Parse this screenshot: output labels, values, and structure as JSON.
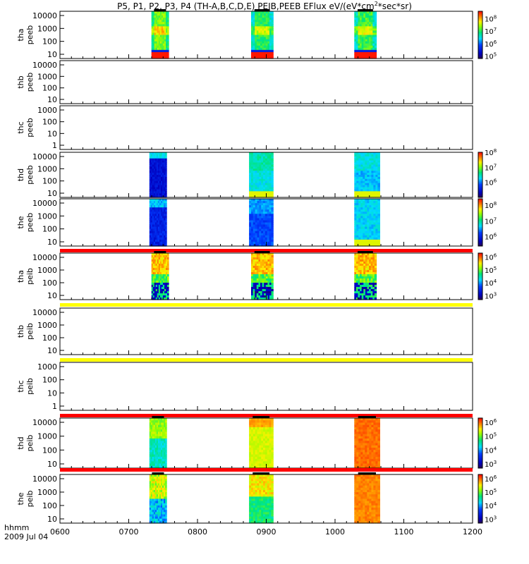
{
  "title": {
    "main": "P5, P1, P2, P3, P4 (TH-A,B,C,D,E) PEIB,PEEB EFlux eV/(eV*cm",
    "sup": "2",
    "tail": "*sec*sr)"
  },
  "footer": {
    "axis_label": "hhmm",
    "date": "2009 Jul 04"
  },
  "chart_data": {
    "type": "heatmap",
    "x_axis": {
      "range": [
        "0600",
        "1200"
      ],
      "tick_labels": [
        "0600",
        "0700",
        "0800",
        "0900",
        "1000",
        "1100",
        "1200"
      ],
      "tick_values_hours": [
        6,
        7,
        8,
        9,
        10,
        11,
        12
      ]
    },
    "colormap": "rainbow (blue-cyan-green-yellow-red)",
    "panels": [
      {
        "probe": "tha",
        "instrument": "peeb",
        "yscale": "log",
        "y_tick_labels": [
          "10",
          "100",
          "1000",
          "10000"
        ],
        "colorbar": {
          "ticks": [
            "10^5",
            "10^6",
            "10^7",
            "10^8"
          ],
          "exp": [
            5,
            6,
            7,
            8
          ],
          "min_exp": 4.8,
          "max_exp": 8.6
        },
        "data_intervals_hours": [
          [
            7.33,
            7.58
          ],
          [
            8.78,
            9.1
          ],
          [
            10.28,
            10.6
          ]
        ],
        "pattern": "tha_e",
        "top_bar": null
      },
      {
        "probe": "thb",
        "instrument": "peeb",
        "yscale": "log",
        "y_tick_labels": [
          "10",
          "100",
          "1000",
          "10000"
        ],
        "colorbar": null,
        "data_intervals_hours": [],
        "pattern": "none",
        "top_bar": null
      },
      {
        "probe": "thc",
        "instrument": "peeb",
        "yscale": "log",
        "y_tick_labels": [
          "1",
          "10",
          "100",
          "1000"
        ],
        "colorbar": null,
        "data_intervals_hours": [],
        "pattern": "none",
        "top_bar": null
      },
      {
        "probe": "thd",
        "instrument": "peeb",
        "yscale": "log",
        "y_tick_labels": [
          "10",
          "100",
          "1000",
          "10000"
        ],
        "colorbar": {
          "ticks": [
            "10^6",
            "10^7",
            "10^8"
          ],
          "exp": [
            6,
            7,
            8
          ],
          "min_exp": 5.0,
          "max_exp": 8.0
        },
        "data_intervals_hours": [
          [
            7.3,
            7.55
          ],
          [
            8.75,
            9.1
          ],
          [
            10.28,
            10.65
          ]
        ],
        "pattern": "thd_e",
        "top_bar": null
      },
      {
        "probe": "the",
        "instrument": "peeb",
        "yscale": "log",
        "y_tick_labels": [
          "10",
          "100",
          "1000",
          "10000"
        ],
        "colorbar": {
          "ticks": [
            "10^6",
            "10^7",
            "10^8"
          ],
          "exp": [
            6,
            7,
            8
          ],
          "min_exp": 5.4,
          "max_exp": 8.4
        },
        "data_intervals_hours": [
          [
            7.3,
            7.55
          ],
          [
            8.75,
            9.1
          ],
          [
            10.28,
            10.65
          ]
        ],
        "pattern": "the_e",
        "top_bar": null
      },
      {
        "probe": "tha",
        "instrument": "peib",
        "yscale": "log",
        "y_tick_labels": [
          "10",
          "100",
          "1000",
          "10000"
        ],
        "colorbar": {
          "ticks": [
            "10^3",
            "10^4",
            "10^5",
            "10^6"
          ],
          "exp": [
            3,
            4,
            5,
            6
          ],
          "min_exp": 2.7,
          "max_exp": 6.3
        },
        "data_intervals_hours": [
          [
            7.33,
            7.58
          ],
          [
            8.78,
            9.1
          ],
          [
            10.28,
            10.6
          ]
        ],
        "pattern": "ion_a",
        "top_bar": "#ff0000"
      },
      {
        "probe": "thb",
        "instrument": "peib",
        "yscale": "log",
        "y_tick_labels": [
          "10",
          "100",
          "1000",
          "10000"
        ],
        "colorbar": null,
        "data_intervals_hours": [],
        "pattern": "none",
        "top_bar": "#ffff00"
      },
      {
        "probe": "thc",
        "instrument": "peib",
        "yscale": "log",
        "y_tick_labels": [
          "1",
          "10",
          "100",
          "1000"
        ],
        "colorbar": null,
        "data_intervals_hours": [],
        "pattern": "none",
        "top_bar": "#ffff00"
      },
      {
        "probe": "thd",
        "instrument": "peib",
        "yscale": "log",
        "y_tick_labels": [
          "10",
          "100",
          "1000",
          "10000"
        ],
        "colorbar": {
          "ticks": [
            "10^3",
            "10^4",
            "10^5",
            "10^6"
          ],
          "exp": [
            3,
            4,
            5,
            6
          ],
          "min_exp": 2.7,
          "max_exp": 6.3
        },
        "data_intervals_hours": [
          [
            7.3,
            7.55
          ],
          [
            8.75,
            9.1
          ],
          [
            10.28,
            10.65
          ]
        ],
        "pattern": "ion_d",
        "top_bar": "#ff0000"
      },
      {
        "probe": "the",
        "instrument": "peib",
        "yscale": "log",
        "y_tick_labels": [
          "10",
          "100",
          "1000",
          "10000"
        ],
        "colorbar": {
          "ticks": [
            "10^3",
            "10^4",
            "10^5",
            "10^6"
          ],
          "exp": [
            3,
            4,
            5,
            6
          ],
          "min_exp": 2.7,
          "max_exp": 6.3
        },
        "data_intervals_hours": [
          [
            7.3,
            7.55
          ],
          [
            8.75,
            9.1
          ],
          [
            10.28,
            10.65
          ]
        ],
        "pattern": "ion_e",
        "top_bar": "#ff0000"
      }
    ]
  }
}
